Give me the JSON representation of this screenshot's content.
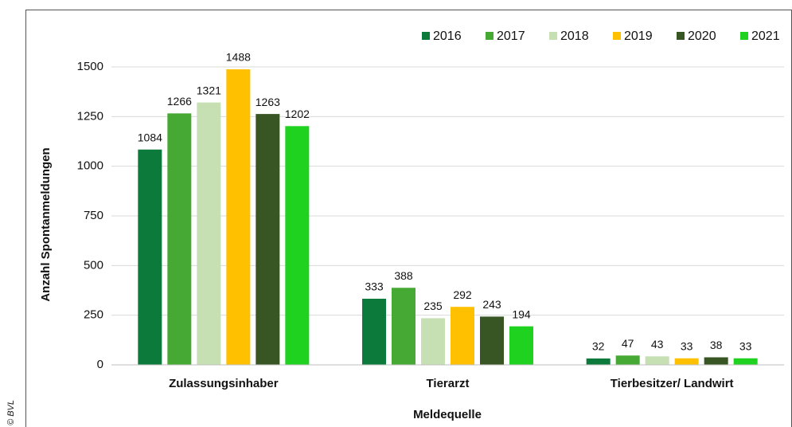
{
  "chart_data": {
    "type": "bar",
    "credit": "© BVL",
    "xlabel": "Meldequelle",
    "ylabel": "Anzahl Spontanmeldungen",
    "categories": [
      "Zulassungsinhaber",
      "Tierarzt",
      "Tierbesitzer/ Landwirt"
    ],
    "series": [
      {
        "name": "2016",
        "color": "#0b7a3b",
        "values": [
          1084,
          333,
          32
        ]
      },
      {
        "name": "2017",
        "color": "#46a934",
        "values": [
          1266,
          388,
          47
        ]
      },
      {
        "name": "2018",
        "color": "#c6e0b4",
        "values": [
          1321,
          235,
          43
        ]
      },
      {
        "name": "2019",
        "color": "#ffc000",
        "values": [
          1488,
          292,
          33
        ]
      },
      {
        "name": "2020",
        "color": "#385624",
        "values": [
          1263,
          243,
          38
        ]
      },
      {
        "name": "2021",
        "color": "#1fd21f",
        "values": [
          1202,
          194,
          33
        ]
      }
    ],
    "ylim": [
      0,
      1500
    ],
    "yticks": [
      0,
      250,
      500,
      750,
      1000,
      1250,
      1500
    ],
    "grid": true,
    "legend": "top-right"
  }
}
